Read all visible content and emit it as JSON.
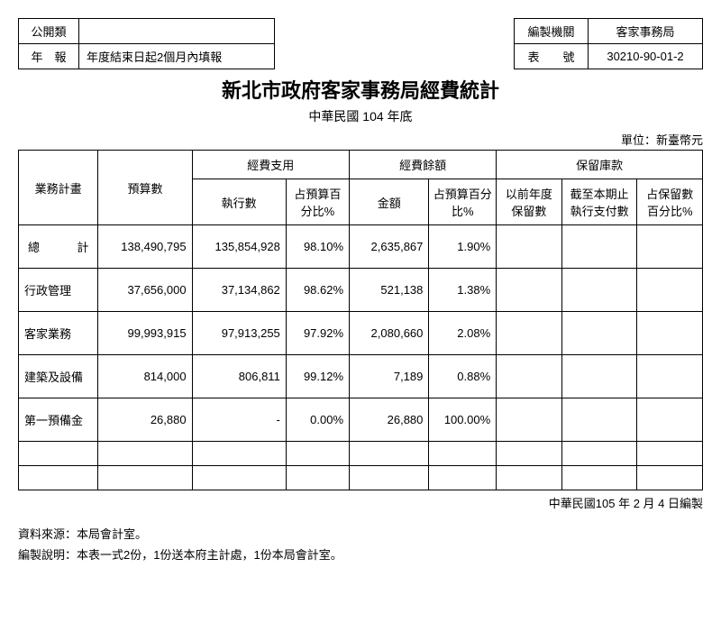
{
  "header_left": {
    "row1_label": "公開類",
    "row1_value": "",
    "row2_label": "年　報",
    "row2_value": "年度結束日起2個月內填報"
  },
  "header_right": {
    "row1_label": "編製機關",
    "row1_value": "客家事務局",
    "row2_label": "表　　號",
    "row2_value": "30210-90-01-2"
  },
  "title": "新北市政府客家事務局經費統計",
  "subtitle": "中華民國  104  年底",
  "unit": "單位：新臺幣元",
  "columns": {
    "plan": "業務計畫",
    "budget": "預算數",
    "expense_group": "經費支用",
    "exec": "執行數",
    "exec_pct": "占預算百分比%",
    "balance_group": "經費餘額",
    "amount": "金額",
    "amount_pct": "占預算百分比%",
    "reserve_group": "保留庫款",
    "prev_reserve": "以前年度保留數",
    "paid_to_date": "截至本期止執行支付數",
    "reserve_pct": "占保留數百分比%"
  },
  "rows": [
    {
      "plan": "總　　　計",
      "budget": "138,490,795",
      "exec": "135,854,928",
      "exec_pct": "98.10%",
      "amount": "2,635,867",
      "amount_pct": "1.90%",
      "prev": "",
      "paid": "",
      "rpct": "",
      "total": true
    },
    {
      "plan": "行政管理",
      "budget": "37,656,000",
      "exec": "37,134,862",
      "exec_pct": "98.62%",
      "amount": "521,138",
      "amount_pct": "1.38%",
      "prev": "",
      "paid": "",
      "rpct": ""
    },
    {
      "plan": "客家業務",
      "budget": "99,993,915",
      "exec": "97,913,255",
      "exec_pct": "97.92%",
      "amount": "2,080,660",
      "amount_pct": "2.08%",
      "prev": "",
      "paid": "",
      "rpct": ""
    },
    {
      "plan": "建築及設備",
      "budget": "814,000",
      "exec": "806,811",
      "exec_pct": "99.12%",
      "amount": "7,189",
      "amount_pct": "0.88%",
      "prev": "",
      "paid": "",
      "rpct": ""
    },
    {
      "plan": "第一預備金",
      "budget": "26,880",
      "exec": "-",
      "exec_pct": "0.00%",
      "amount": "26,880",
      "amount_pct": "100.00%",
      "prev": "",
      "paid": "",
      "rpct": ""
    }
  ],
  "footer_right": "中華民國105 年 2 月 4 日編製",
  "footer_notes": [
    "資料來源：本局會計室。",
    "編製說明：本表一式2份，1份送本府主計處，1份本局會計室。"
  ]
}
